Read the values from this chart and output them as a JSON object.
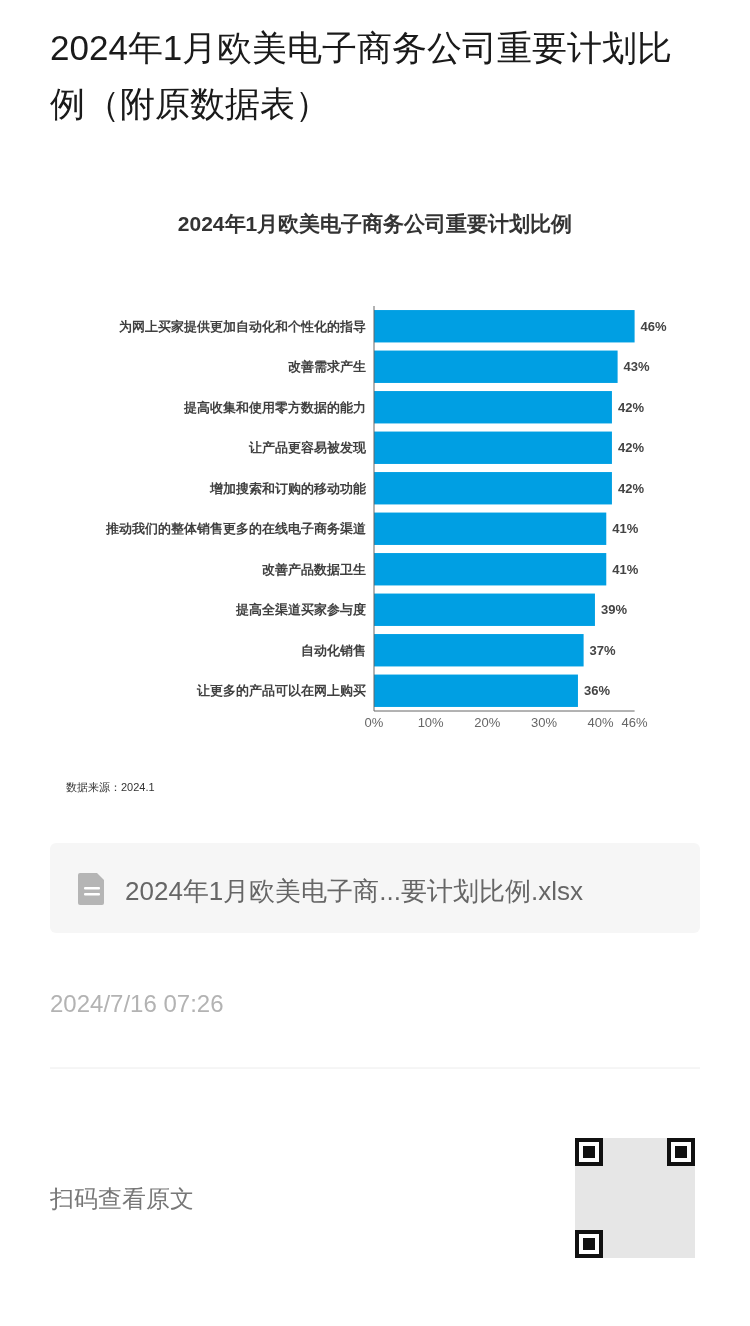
{
  "chart_data": {
    "type": "bar",
    "orientation": "horizontal",
    "title": "2024年1月欧美电子商务公司重要计划比例（附原数据表）",
    "subtitle": "2024年1月欧美电子商务公司重要计划比例",
    "categories": [
      "为网上买家提供更加自动化和个性化的指导",
      "改善需求产生",
      "提高收集和使用零方数据的能力",
      "让产品更容易被发现",
      "增加搜索和订购的移动功能",
      "推动我们的整体销售更多的在线电子商务渠道",
      "改善产品数据卫生",
      "提高全渠道买家参与度",
      "自动化销售",
      "让更多的产品可以在网上购买"
    ],
    "values": [
      46,
      43,
      42,
      42,
      42,
      41,
      41,
      39,
      37,
      36
    ],
    "value_labels": [
      "46%",
      "43%",
      "42%",
      "42%",
      "42%",
      "41%",
      "41%",
      "39%",
      "37%",
      "36%"
    ],
    "color": "#009fe3",
    "xlim": [
      0,
      46
    ],
    "xticks": [
      {
        "value": 0,
        "label": "0%"
      },
      {
        "value": 10,
        "label": "10%"
      },
      {
        "value": 20,
        "label": "20%"
      },
      {
        "value": 30,
        "label": "30%"
      },
      {
        "value": 40,
        "label": "40%"
      },
      {
        "value": 46,
        "label": "46%"
      }
    ],
    "annotations": [
      "数据来源：2024.1",
      "2024年1月欧美电子商...要计划比例.xlsx",
      "2024/7/16 07:26",
      "扫码查看原文"
    ]
  }
}
